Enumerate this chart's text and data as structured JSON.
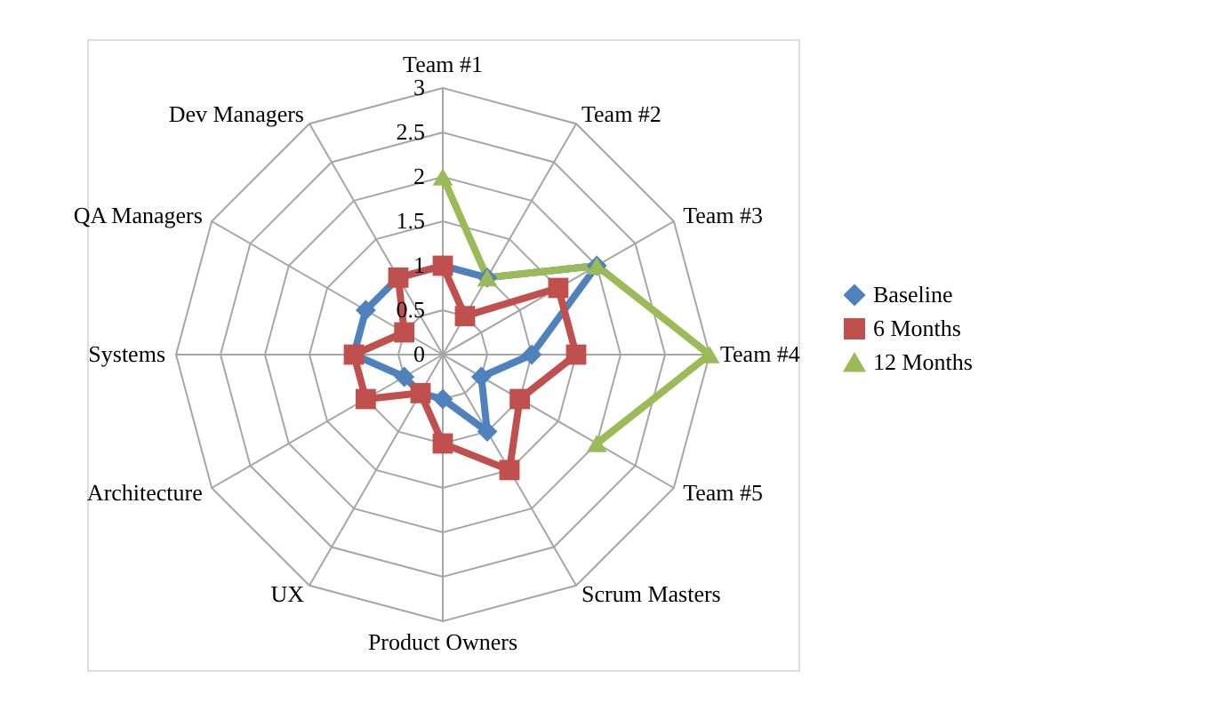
{
  "chart_data": {
    "type": "radar",
    "categories": [
      "Team #1",
      "Team #2",
      "Team #3",
      "Team #4",
      "Team #5",
      "Scrum Masters",
      "Product Owners",
      "UX",
      "Architecture",
      "Systems",
      "QA Managers",
      "Dev Managers"
    ],
    "series": [
      {
        "name": "Baseline",
        "color": "#4f81bd",
        "marker": "diamond",
        "values": [
          1,
          1,
          2,
          1,
          0.5,
          1,
          0.5,
          0.5,
          0.5,
          1,
          1,
          1
        ]
      },
      {
        "name": "6 Months",
        "color": "#c0504d",
        "marker": "square",
        "values": [
          1,
          0.5,
          1.5,
          1.5,
          1,
          1.5,
          1,
          0.5,
          1,
          1,
          0.5,
          1
        ]
      },
      {
        "name": "12 Months",
        "color": "#9bbb59",
        "marker": "triangle",
        "values": [
          2,
          1,
          2,
          3,
          2,
          null,
          null,
          null,
          null,
          null,
          null,
          null
        ]
      }
    ],
    "ylim": [
      0,
      3
    ],
    "yticks": [
      0,
      0.5,
      1,
      1.5,
      2,
      2.5,
      3
    ],
    "grid": true,
    "legend": "right"
  }
}
